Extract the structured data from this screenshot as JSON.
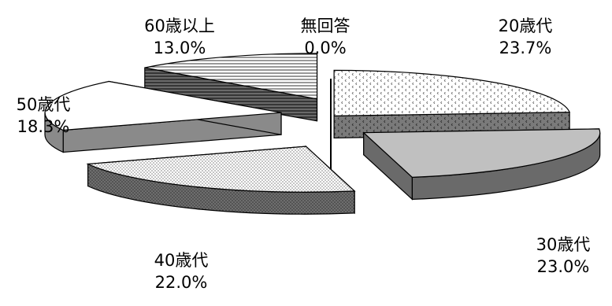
{
  "chart_data": {
    "type": "pie",
    "title": "",
    "style": "3d-exploded",
    "slices": [
      {
        "label": "20歳代",
        "value": 23.7,
        "value_label": "23.7%",
        "pattern": "dots-sparse"
      },
      {
        "label": "30歳代",
        "value": 23.0,
        "value_label": "23.0%",
        "pattern": "solid-gray"
      },
      {
        "label": "40歳代",
        "value": 22.0,
        "value_label": "22.0%",
        "pattern": "dots-dense"
      },
      {
        "label": "50歳代",
        "value": 18.3,
        "value_label": "18.3%",
        "pattern": "solid-white"
      },
      {
        "label": "60歳以上",
        "value": 13.0,
        "value_label": "13.0%",
        "pattern": "horizontal-lines"
      },
      {
        "label": "無回答",
        "value": 0.0,
        "value_label": "0.0%",
        "pattern": "none"
      }
    ]
  }
}
